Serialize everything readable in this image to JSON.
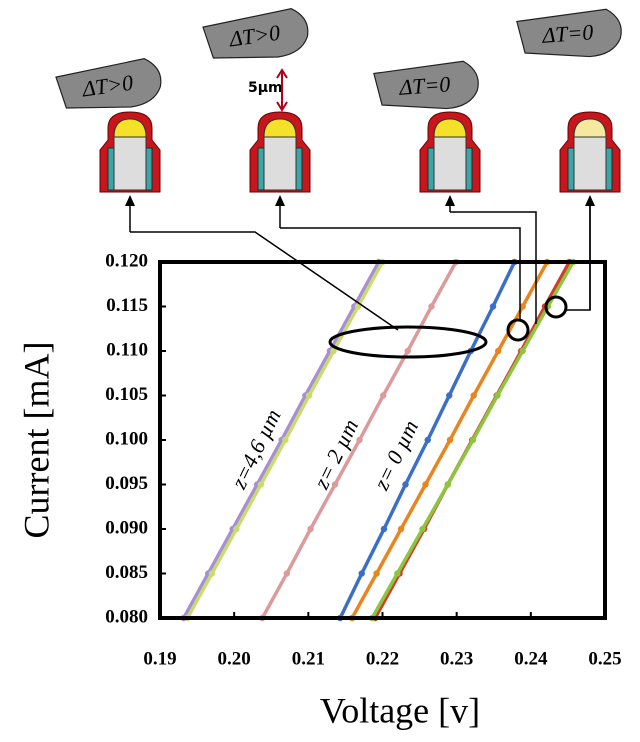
{
  "diagrams": [
    {
      "label": "ΔT>0"
    },
    {
      "label": "ΔT>0"
    },
    {
      "label": "ΔT=0"
    },
    {
      "label": "ΔT=0"
    }
  ],
  "gap_label": "5µm",
  "chart_data": {
    "type": "line",
    "xlabel": "Voltage [v]",
    "ylabel": "Current [mA]",
    "xlim": [
      0.19,
      0.25
    ],
    "ylim": [
      0.08,
      0.12
    ],
    "xticks": [
      0.19,
      {
        "value": 0.2,
        "label": "0.20"
      },
      0.21,
      0.22,
      0.23,
      0.24,
      0.25
    ],
    "yticks": [
      {
        "value": 0.08,
        "label": "0.080"
      },
      0.085,
      {
        "value": 0.09,
        "label": "0.090"
      },
      0.095,
      {
        "value": 0.1,
        "label": "0.100"
      },
      0.105,
      {
        "value": 0.11,
        "label": "0.110"
      },
      0.115,
      {
        "value": 0.12,
        "label": "0.120"
      }
    ],
    "annotations": [
      "z=4,6 µm",
      "z= 2 µm",
      "z= 0 µm"
    ],
    "series": [
      {
        "color": "#a98ed6",
        "x": [
          0.1932,
          0.1965,
          0.1998,
          0.2031,
          0.2064,
          0.2096,
          0.2129,
          0.2162,
          0.2195
        ],
        "values": [
          0.08,
          0.085,
          0.09,
          0.095,
          0.1,
          0.105,
          0.11,
          0.115,
          0.12
        ]
      },
      {
        "color": "#c8dc6e",
        "x": [
          0.1937,
          0.197,
          0.2003,
          0.2036,
          0.2069,
          0.2101,
          0.2134,
          0.2167,
          0.22
        ],
        "values": [
          0.08,
          0.085,
          0.09,
          0.095,
          0.1,
          0.105,
          0.11,
          0.115,
          0.12
        ]
      },
      {
        "color": "#dc9a9a",
        "x": [
          0.2038,
          0.2071,
          0.2103,
          0.2136,
          0.2169,
          0.2201,
          0.2234,
          0.2266,
          0.2299
        ],
        "values": [
          0.08,
          0.085,
          0.09,
          0.095,
          0.1,
          0.105,
          0.11,
          0.115,
          0.12
        ]
      },
      {
        "color": "#3b6fc7",
        "x": [
          0.2143,
          0.2172,
          0.2202,
          0.2231,
          0.2261,
          0.229,
          0.2319,
          0.2349,
          0.2378
        ],
        "values": [
          0.08,
          0.085,
          0.09,
          0.095,
          0.1,
          0.105,
          0.11,
          0.115,
          0.12
        ]
      },
      {
        "color": "#e8851e",
        "x": [
          0.2159,
          0.2192,
          0.2225,
          0.2258,
          0.2291,
          0.2323,
          0.2356,
          0.2389,
          0.2422
        ],
        "values": [
          0.08,
          0.085,
          0.09,
          0.095,
          0.1,
          0.105,
          0.11,
          0.115,
          0.12
        ]
      },
      {
        "color": "#d43a2a",
        "x": [
          0.219,
          0.2223,
          0.2256,
          0.2288,
          0.2321,
          0.2354,
          0.2387,
          0.2419,
          0.2452
        ],
        "values": [
          0.08,
          0.085,
          0.09,
          0.095,
          0.1,
          0.105,
          0.11,
          0.115,
          0.12
        ]
      },
      {
        "color": "#8cc63f",
        "x": [
          0.2186,
          0.222,
          0.2254,
          0.2288,
          0.2322,
          0.2355,
          0.2389,
          0.2423,
          0.2457
        ],
        "values": [
          0.08,
          0.085,
          0.09,
          0.095,
          0.1,
          0.105,
          0.11,
          0.115,
          0.12
        ]
      }
    ]
  }
}
